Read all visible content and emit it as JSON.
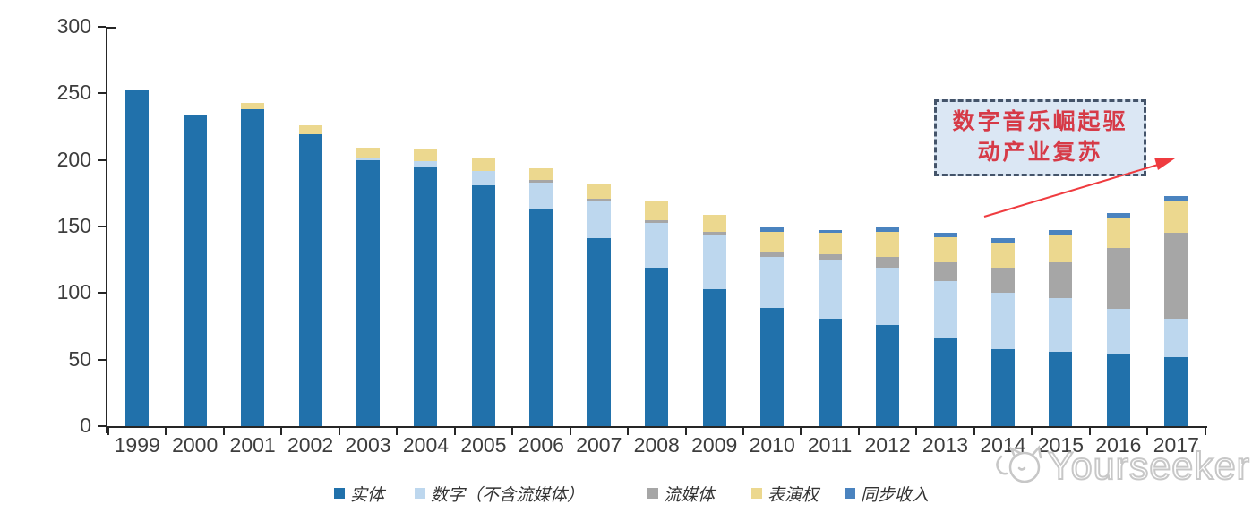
{
  "watermark": {
    "text": "Yourseeker",
    "logo": "cat-logo"
  },
  "chart_data": {
    "type": "bar",
    "stacked": true,
    "title": "",
    "xlabel": "",
    "ylabel": "",
    "ylim": [
      0,
      300
    ],
    "yticks": [
      0,
      50,
      100,
      150,
      200,
      250,
      300
    ],
    "grid": false,
    "legend_position": "bottom",
    "categories": [
      "1999",
      "2000",
      "2001",
      "2002",
      "2003",
      "2004",
      "2005",
      "2006",
      "2007",
      "2008",
      "2009",
      "2010",
      "2011",
      "2012",
      "2013",
      "2014",
      "2015",
      "2016",
      "2017"
    ],
    "series": [
      {
        "name": "实体",
        "color": "#2171AB",
        "values": [
          252,
          234,
          238,
          219,
          200,
          195,
          181,
          163,
          141,
          119,
          103,
          89,
          81,
          76,
          66,
          58,
          56,
          54,
          52
        ]
      },
      {
        "name": "数字（不含流媒体）",
        "color": "#BDD7EE",
        "values": [
          0,
          0,
          0,
          0,
          1,
          4,
          11,
          20,
          28,
          34,
          40,
          38,
          44,
          43,
          43,
          42,
          40,
          34,
          29
        ]
      },
      {
        "name": "流媒体",
        "color": "#A6A6A6",
        "values": [
          0,
          0,
          0,
          0,
          0,
          0,
          0,
          2,
          2,
          2,
          3,
          4,
          4,
          8,
          14,
          19,
          27,
          46,
          64
        ]
      },
      {
        "name": "表演权",
        "color": "#ECD88F",
        "values": [
          0,
          0,
          5,
          7,
          8,
          9,
          9,
          9,
          11,
          14,
          13,
          15,
          16,
          19,
          19,
          19,
          21,
          22,
          24
        ]
      },
      {
        "name": "同步收入",
        "color": "#4A83BF",
        "values": [
          0,
          0,
          0,
          0,
          0,
          0,
          0,
          0,
          0,
          0,
          0,
          3,
          2,
          3,
          3,
          3,
          3,
          4,
          4
        ]
      }
    ],
    "annotation": {
      "text": "数字音乐崛起驱动产业复苏",
      "lines": [
        "数字音乐崛起驱",
        "动产业复苏"
      ]
    }
  }
}
